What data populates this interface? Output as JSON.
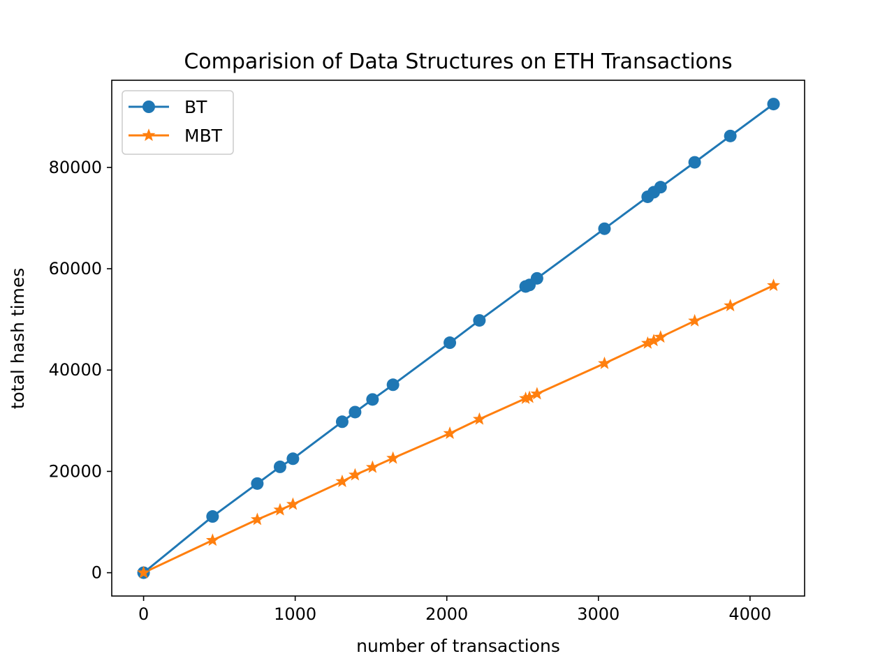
{
  "chart_data": {
    "type": "line",
    "title": "Comparision of Data Structures on ETH Transactions",
    "xlabel": "number of transactions",
    "ylabel": "total hash times",
    "xlim": [
      -210,
      4360
    ],
    "ylim": [
      -4600,
      97200
    ],
    "xticks": [
      0,
      1000,
      2000,
      3000,
      4000
    ],
    "xtick_labels": [
      "0",
      "1000",
      "2000",
      "3000",
      "4000"
    ],
    "yticks": [
      0,
      20000,
      40000,
      60000,
      80000
    ],
    "ytick_labels": [
      "0",
      "20000",
      "40000",
      "60000",
      "80000"
    ],
    "grid": false,
    "legend_position": "upper left",
    "series": [
      {
        "name": "BT",
        "color": "#1f77b4",
        "marker": "circle",
        "points": [
          [
            0,
            0
          ],
          [
            455,
            11100
          ],
          [
            750,
            17600
          ],
          [
            900,
            20900
          ],
          [
            985,
            22500
          ],
          [
            1310,
            29800
          ],
          [
            1395,
            31700
          ],
          [
            1510,
            34200
          ],
          [
            1645,
            37100
          ],
          [
            2020,
            45400
          ],
          [
            2215,
            49800
          ],
          [
            2520,
            56500
          ],
          [
            2545,
            56800
          ],
          [
            2595,
            58100
          ],
          [
            3040,
            67900
          ],
          [
            3325,
            74200
          ],
          [
            3365,
            75100
          ],
          [
            3410,
            76100
          ],
          [
            3635,
            81000
          ],
          [
            3870,
            86200
          ],
          [
            4155,
            92500
          ]
        ]
      },
      {
        "name": "MBT",
        "color": "#ff7f0e",
        "marker": "star",
        "points": [
          [
            0,
            0
          ],
          [
            455,
            6400
          ],
          [
            750,
            10500
          ],
          [
            900,
            12400
          ],
          [
            985,
            13500
          ],
          [
            1310,
            18000
          ],
          [
            1395,
            19300
          ],
          [
            1510,
            20800
          ],
          [
            1645,
            22600
          ],
          [
            2020,
            27500
          ],
          [
            2215,
            30300
          ],
          [
            2520,
            34400
          ],
          [
            2545,
            34600
          ],
          [
            2595,
            35300
          ],
          [
            3040,
            41300
          ],
          [
            3325,
            45300
          ],
          [
            3365,
            45800
          ],
          [
            3410,
            46500
          ],
          [
            3635,
            49700
          ],
          [
            3870,
            52700
          ],
          [
            4155,
            56700
          ]
        ]
      }
    ]
  }
}
